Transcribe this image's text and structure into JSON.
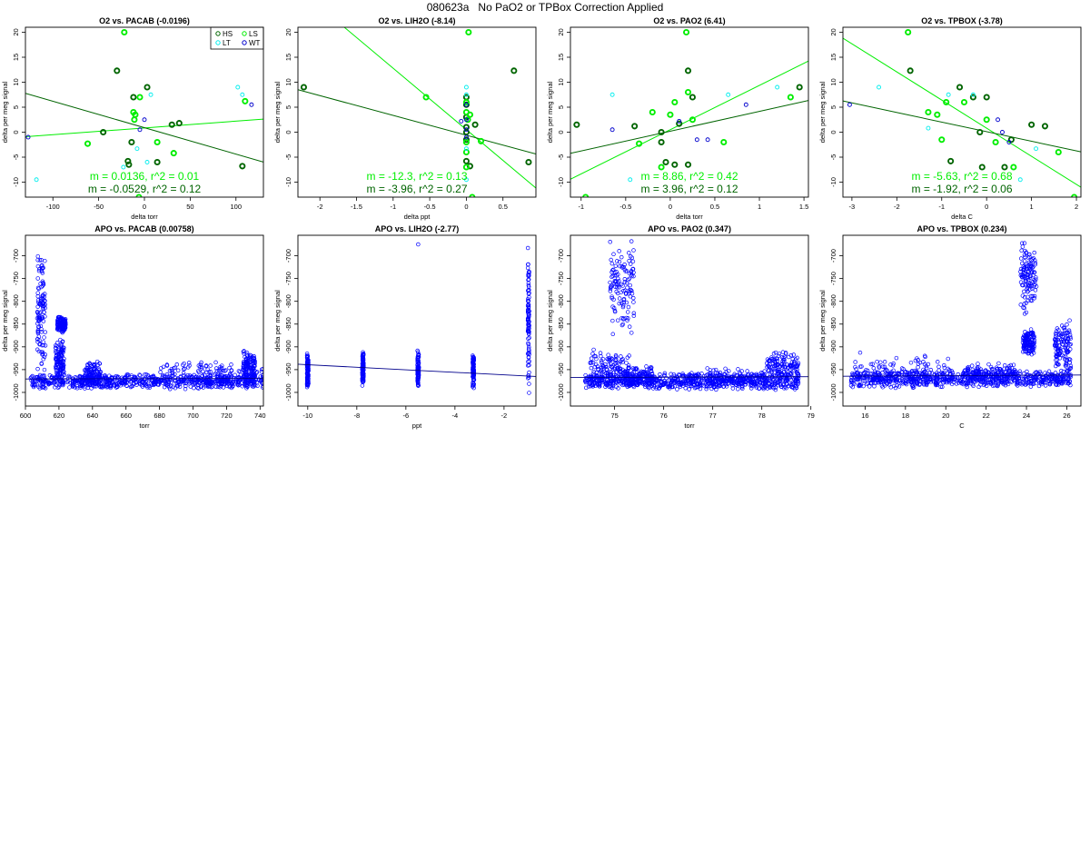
{
  "page": {
    "title": "080623a   No PaO2 or TPBox Correction Applied"
  },
  "ylabel": "delta per meg signal",
  "colors": {
    "HS": "#006400",
    "LS": "#00ee00",
    "LT": "#00eeee",
    "WT": "#0000cd",
    "fit_light": "#00ee00",
    "fit_dark": "#006400",
    "apo": "#0000ff"
  },
  "chart_data": [
    {
      "type": "scatter",
      "title": "O2 vs. PACAB (-0.0196)",
      "xlabel": "delta torr",
      "xlim": [
        -130,
        130
      ],
      "ylim": [
        -13,
        21
      ],
      "xticks": [
        -100,
        -50,
        0,
        50,
        100
      ],
      "yticks": [
        -10,
        -5,
        0,
        5,
        10,
        15,
        20
      ],
      "legend": {
        "placement": "top-right",
        "entries": [
          "HS",
          "LS",
          "LT",
          "WT"
        ]
      },
      "series": [
        {
          "name": "HS",
          "points": [
            [
              -30,
              12.3
            ],
            [
              -12,
              7
            ],
            [
              3,
              9
            ],
            [
              -18,
              -5.8
            ],
            [
              -14,
              -2
            ],
            [
              30,
              1.5
            ],
            [
              38,
              1.8
            ],
            [
              14,
              -6
            ],
            [
              -45,
              0
            ],
            [
              107,
              -6.8
            ],
            [
              -17,
              -6.5
            ]
          ]
        },
        {
          "name": "LS",
          "points": [
            [
              -22,
              20
            ],
            [
              -12,
              4
            ],
            [
              -10,
              3.5
            ],
            [
              -11,
              2.5
            ],
            [
              -5,
              7
            ],
            [
              14,
              -2
            ],
            [
              -62,
              -2.3
            ],
            [
              32,
              -4.2
            ],
            [
              110,
              6.2
            ],
            [
              -6,
              -13
            ]
          ]
        },
        {
          "name": "LT",
          "points": [
            [
              -118,
              -9.5
            ],
            [
              102,
              9
            ],
            [
              107,
              7.5
            ],
            [
              7,
              7.5
            ],
            [
              -8,
              -3.3
            ],
            [
              -23,
              -7
            ],
            [
              3,
              -6
            ]
          ]
        },
        {
          "name": "WT",
          "points": [
            [
              -127,
              -1
            ],
            [
              -5,
              0.5
            ],
            [
              0,
              2.5
            ],
            [
              117,
              5.5
            ]
          ]
        }
      ],
      "fits": [
        {
          "slope": 0.0136,
          "intercept": 0.85,
          "color": "light"
        },
        {
          "slope": -0.0529,
          "intercept": 0.9,
          "color": "dark"
        }
      ],
      "annotations": [
        "m = 0.0136, r^2 = 0.01",
        "m = -0.0529, r^2 = 0.12"
      ]
    },
    {
      "type": "scatter",
      "title": "O2 vs. LIH2O (-8.14)",
      "xlabel": "delta ppt",
      "xlim": [
        -2.3,
        0.95
      ],
      "ylim": [
        -13,
        21
      ],
      "xticks": [
        -2.0,
        -1.5,
        -1.0,
        -0.5,
        0.0,
        0.5
      ],
      "yticks": [
        -10,
        -5,
        0,
        5,
        10,
        15,
        20
      ],
      "series": [
        {
          "name": "HS",
          "points": [
            [
              -2.22,
              9
            ],
            [
              0.0,
              7
            ],
            [
              0.0,
              5.5
            ],
            [
              0.0,
              3
            ],
            [
              0.0,
              1
            ],
            [
              0.0,
              0
            ],
            [
              0.0,
              -1.5
            ],
            [
              0.0,
              -5.8
            ],
            [
              0.05,
              -6.8
            ],
            [
              0.12,
              1.5
            ],
            [
              0.65,
              12.3
            ],
            [
              0.85,
              -6
            ]
          ]
        },
        {
          "name": "LS",
          "points": [
            [
              -0.55,
              7
            ],
            [
              0.03,
              20
            ],
            [
              0.0,
              4
            ],
            [
              0.02,
              2.5
            ],
            [
              0.0,
              -2
            ],
            [
              0.0,
              -4
            ],
            [
              0.0,
              -7
            ],
            [
              0.2,
              -1.8
            ],
            [
              0.08,
              -13
            ],
            [
              0.05,
              3.5
            ],
            [
              0.0,
              6
            ]
          ]
        },
        {
          "name": "LT",
          "points": [
            [
              0.0,
              9
            ],
            [
              0.0,
              7.5
            ],
            [
              0.0,
              -3.3
            ],
            [
              0.0,
              -9.5
            ]
          ]
        },
        {
          "name": "WT",
          "points": [
            [
              0.0,
              0.5
            ],
            [
              0.0,
              2.5
            ],
            [
              0.0,
              -1
            ],
            [
              0.0,
              5.5
            ],
            [
              -0.07,
              2.2
            ]
          ]
        }
      ],
      "fits": [
        {
          "slope": -12.3,
          "intercept": 0.5,
          "color": "light"
        },
        {
          "slope": -3.96,
          "intercept": -0.6,
          "color": "dark"
        }
      ],
      "annotations": [
        "m = -12.3, r^2 = 0.13",
        "m = -3.96, r^2 = 0.27"
      ]
    },
    {
      "type": "scatter",
      "title": "O2 vs. PAO2 (6.41)",
      "xlabel": "delta torr",
      "xlim": [
        -1.12,
        1.55
      ],
      "ylim": [
        -13,
        21
      ],
      "xticks": [
        -1.0,
        -0.5,
        0.0,
        0.5,
        1.0,
        1.5
      ],
      "yticks": [
        -10,
        -5,
        0,
        5,
        10,
        15,
        20
      ],
      "series": [
        {
          "name": "HS",
          "points": [
            [
              -1.05,
              1.5
            ],
            [
              -0.4,
              1.2
            ],
            [
              -0.1,
              0
            ],
            [
              -0.1,
              -2
            ],
            [
              -0.05,
              -6
            ],
            [
              0.05,
              -6.5
            ],
            [
              0.2,
              12.3
            ],
            [
              0.25,
              7
            ],
            [
              0.1,
              1.7
            ],
            [
              0.2,
              -6.5
            ],
            [
              1.45,
              9
            ]
          ]
        },
        {
          "name": "LS",
          "points": [
            [
              -0.95,
              -13
            ],
            [
              -0.2,
              4
            ],
            [
              0.0,
              3.5
            ],
            [
              0.05,
              6
            ],
            [
              0.18,
              20
            ],
            [
              0.25,
              2.5
            ],
            [
              0.6,
              -2
            ],
            [
              1.35,
              7
            ],
            [
              -0.35,
              -2.3
            ],
            [
              -0.1,
              -7
            ],
            [
              0.2,
              8
            ]
          ]
        },
        {
          "name": "LT",
          "points": [
            [
              -0.65,
              7.5
            ],
            [
              -0.45,
              -9.5
            ],
            [
              0.65,
              7.5
            ],
            [
              1.2,
              9
            ]
          ]
        },
        {
          "name": "WT",
          "points": [
            [
              -0.65,
              0.5
            ],
            [
              0.3,
              -1.5
            ],
            [
              0.42,
              -1.5
            ],
            [
              0.85,
              5.5
            ],
            [
              0.1,
              2.2
            ]
          ]
        }
      ],
      "fits": [
        {
          "slope": 8.86,
          "intercept": 0.5,
          "color": "light"
        },
        {
          "slope": 3.96,
          "intercept": 0.2,
          "color": "dark"
        }
      ],
      "annotations": [
        "m = 8.86, r^2 = 0.42",
        "m = 3.96, r^2 = 0.12"
      ]
    },
    {
      "type": "scatter",
      "title": "O2 vs. TPBOX (-3.78)",
      "xlabel": "delta C",
      "xlim": [
        -3.2,
        2.1
      ],
      "ylim": [
        -13,
        21
      ],
      "xticks": [
        -3,
        -2,
        -1,
        0,
        1,
        2
      ],
      "yticks": [
        -10,
        -5,
        0,
        5,
        10,
        15,
        20
      ],
      "series": [
        {
          "name": "HS",
          "points": [
            [
              -1.7,
              12.3
            ],
            [
              -0.6,
              9
            ],
            [
              -0.3,
              7
            ],
            [
              0.0,
              7
            ],
            [
              -0.8,
              -5.8
            ],
            [
              -0.15,
              0
            ],
            [
              0.4,
              -7
            ],
            [
              1.0,
              1.5
            ],
            [
              1.3,
              1.2
            ],
            [
              0.55,
              -1.5
            ],
            [
              -0.1,
              -7
            ]
          ]
        },
        {
          "name": "LS",
          "points": [
            [
              -1.75,
              20
            ],
            [
              -1.3,
              4
            ],
            [
              -1.1,
              3.5
            ],
            [
              -0.9,
              6
            ],
            [
              -1.0,
              -1.5
            ],
            [
              0.2,
              -2
            ],
            [
              -0.5,
              6
            ],
            [
              0.0,
              2.5
            ],
            [
              0.6,
              -7
            ],
            [
              1.6,
              -4
            ],
            [
              1.95,
              -13
            ]
          ]
        },
        {
          "name": "LT",
          "points": [
            [
              -2.4,
              9
            ],
            [
              -0.85,
              7.5
            ],
            [
              -0.3,
              7.5
            ],
            [
              -1.3,
              0.8
            ],
            [
              1.1,
              -3.3
            ],
            [
              0.75,
              -9.5
            ]
          ]
        },
        {
          "name": "WT",
          "points": [
            [
              -3.05,
              5.5
            ],
            [
              0.35,
              0
            ],
            [
              0.25,
              2.5
            ],
            [
              0.5,
              -2
            ]
          ]
        }
      ],
      "fits": [
        {
          "slope": -5.63,
          "intercept": 0.8,
          "color": "light"
        },
        {
          "slope": -1.92,
          "intercept": 0.1,
          "color": "dark"
        }
      ],
      "annotations": [
        "m = -5.63, r^2 = 0.68",
        "m = -1.92, r^2 = 0.06"
      ]
    },
    {
      "type": "scatter",
      "title": "APO vs. PACAB (0.00758)",
      "xlabel": "torr",
      "xlim": [
        600,
        742
      ],
      "ylim": [
        -1030,
        -655
      ],
      "xticks": [
        600,
        620,
        640,
        660,
        680,
        700,
        720,
        740
      ],
      "yticks": [
        -1000,
        -950,
        -900,
        -850,
        -800,
        -750,
        -700
      ],
      "fit": {
        "slope": 0.00758,
        "intercept": -975
      },
      "cloud": [
        {
          "x": [
            603,
            742
          ],
          "y": [
            -993,
            -958
          ]
        },
        {
          "x": [
            607,
            612
          ],
          "y": [
            -1000,
            -660
          ]
        },
        {
          "x": [
            618,
            623
          ],
          "y": [
            -990,
            -880
          ]
        },
        {
          "x": [
            619,
            624
          ],
          "y": [
            -870,
            -830
          ]
        },
        {
          "x": [
            635,
            645
          ],
          "y": [
            -995,
            -930
          ]
        },
        {
          "x": [
            680,
            742
          ],
          "y": [
            -985,
            -925
          ]
        },
        {
          "x": [
            730,
            737
          ],
          "y": [
            -990,
            -900
          ]
        }
      ]
    },
    {
      "type": "scatter",
      "title": "APO vs. LIH2O (-2.77)",
      "xlabel": "ppt",
      "xlim": [
        -10.4,
        -0.7
      ],
      "ylim": [
        -1030,
        -655
      ],
      "xticks": [
        -10,
        -8,
        -6,
        -4,
        -2
      ],
      "yticks": [
        -1000,
        -950,
        -900,
        -850,
        -800,
        -750,
        -700
      ],
      "fit": {
        "slope": -2.77,
        "intercept": -967
      },
      "columns": [
        {
          "x": -10.0,
          "y": [
            -990,
            -910
          ]
        },
        {
          "x": -7.75,
          "y": [
            -990,
            -910
          ]
        },
        {
          "x": -5.5,
          "y": [
            -995,
            -905
          ]
        },
        {
          "x": -3.25,
          "y": [
            -995,
            -910
          ]
        },
        {
          "x": -1.0,
          "y": [
            -1020,
            -665
          ]
        }
      ],
      "outliers": [
        [
          -5.5,
          -675
        ],
        [
          -1.0,
          -765
        ],
        [
          -1.0,
          -830
        ]
      ]
    },
    {
      "type": "scatter",
      "title": "APO vs. PAO2 (0.347)",
      "xlabel": "torr",
      "xlim": [
        74.1,
        78.95
      ],
      "ylim": [
        -1030,
        -655
      ],
      "xticks": [
        75,
        76,
        77,
        78,
        79
      ],
      "yticks": [
        -1000,
        -950,
        -900,
        -850,
        -800,
        -750,
        -700
      ],
      "fit": {
        "slope": 0.347,
        "intercept": -993
      },
      "cloud": [
        {
          "x": [
            74.4,
            78.75
          ],
          "y": [
            -995,
            -955
          ]
        },
        {
          "x": [
            74.5,
            75.3
          ],
          "y": [
            -990,
            -900
          ]
        },
        {
          "x": [
            74.9,
            75.4
          ],
          "y": [
            -880,
            -665
          ]
        },
        {
          "x": [
            75.2,
            75.8
          ],
          "y": [
            -990,
            -940
          ]
        },
        {
          "x": [
            76.5,
            78.1
          ],
          "y": [
            -995,
            -945
          ]
        },
        {
          "x": [
            78.1,
            78.75
          ],
          "y": [
            -975,
            -905
          ]
        }
      ]
    },
    {
      "type": "scatter",
      "title": "APO vs. TPBOX (0.234)",
      "xlabel": "C",
      "xlim": [
        14.9,
        26.7
      ],
      "ylim": [
        -1030,
        -655
      ],
      "xticks": [
        16,
        18,
        20,
        22,
        24,
        26
      ],
      "yticks": [
        -1000,
        -950,
        -900,
        -850,
        -800,
        -750,
        -700
      ],
      "fit": {
        "slope": 0.234,
        "intercept": -968
      },
      "cloud": [
        {
          "x": [
            15.3,
            26.2
          ],
          "y": [
            -990,
            -950
          ]
        },
        {
          "x": [
            15.5,
            20.5
          ],
          "y": [
            -1000,
            -910
          ]
        },
        {
          "x": [
            20.8,
            23.5
          ],
          "y": [
            -975,
            -935
          ]
        },
        {
          "x": [
            23.7,
            24.5
          ],
          "y": [
            -830,
            -665
          ]
        },
        {
          "x": [
            23.8,
            24.4
          ],
          "y": [
            -920,
            -860
          ]
        },
        {
          "x": [
            25.4,
            26.2
          ],
          "y": [
            -960,
            -840
          ]
        }
      ]
    }
  ]
}
